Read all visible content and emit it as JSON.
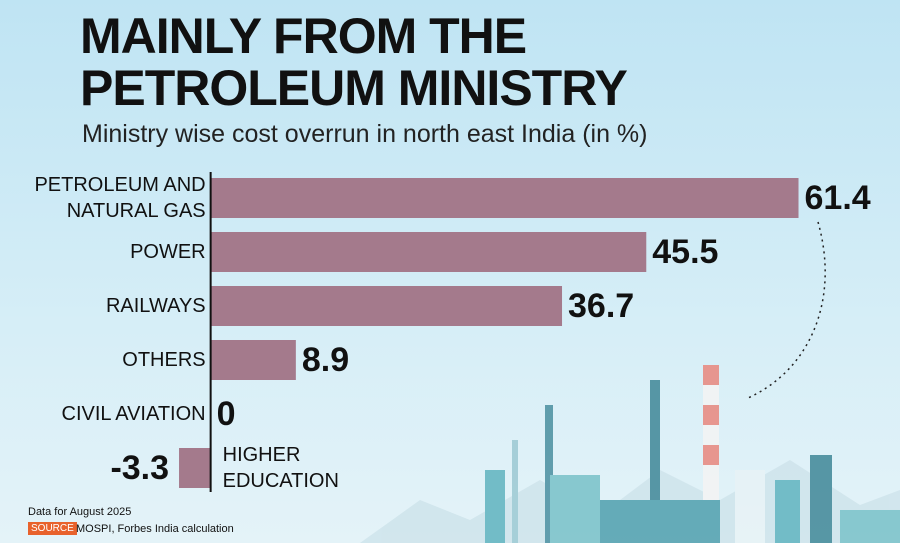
{
  "chart_data": {
    "type": "bar",
    "orientation": "horizontal",
    "title": "MAINLY FROM THE PETROLEUM MINISTRY",
    "subtitle": "Ministry wise cost overrun in north east India (in %)",
    "categories": [
      "PETROLEUM AND NATURAL GAS",
      "POWER",
      "RAILWAYS",
      "OTHERS",
      "CIVIL AVIATION",
      "HIGHER EDUCATION"
    ],
    "values": [
      61.4,
      45.5,
      36.7,
      8.9,
      0,
      -3.3
    ],
    "color": "#a47a8c",
    "xlim": [
      -22,
      72
    ],
    "note": "Data for August 2025",
    "source_label": "SOURCE",
    "source": "MOSPI, Forbes India calculation"
  }
}
